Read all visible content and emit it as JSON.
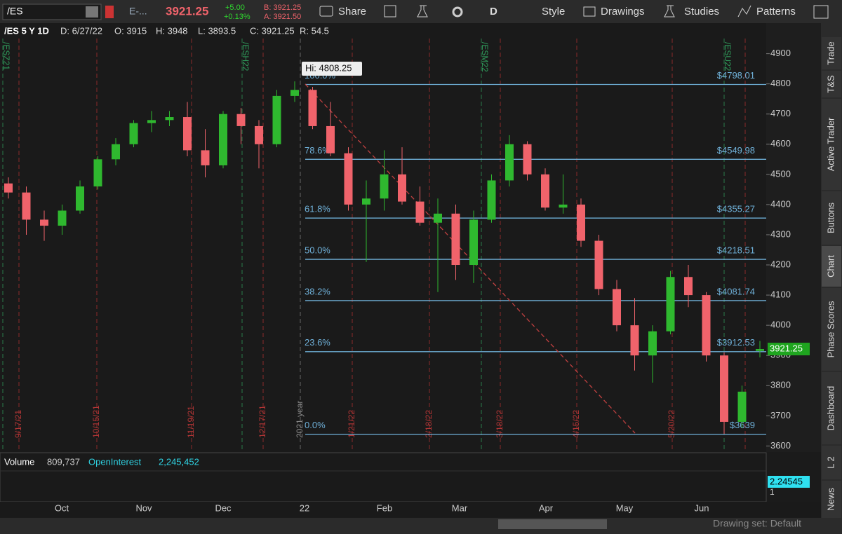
{
  "toolbar": {
    "symbol": "/ES",
    "description": "E-...",
    "last": "3921.25",
    "change": "+5.00",
    "change_pct": "+0.13%",
    "bid": "B: 3921.25",
    "ask": "A: 3921.50",
    "share": "Share",
    "aggregation": "D",
    "style": "Style",
    "drawings": "Drawings",
    "studies": "Studies",
    "patterns": "Patterns"
  },
  "info": {
    "symbol": "/ES 5 Y 1D",
    "date": "D: 6/27/22",
    "open": "O: 3915",
    "high": "H: 3948",
    "low": "L: 3893.5",
    "close": "C: 3921.25",
    "range": "R: 54.5"
  },
  "chart_data": {
    "type": "candlestick",
    "annotation": "Hi: 4808.25",
    "last_price_label": "3921.25",
    "last_price": 3921.25,
    "ylim": [
      3580,
      4985
    ],
    "yticks": [
      3600,
      3700,
      3800,
      3900,
      4000,
      4100,
      4200,
      4300,
      4400,
      4500,
      4600,
      4700,
      4800,
      4900
    ],
    "colors": {
      "up": "#2fb82f",
      "down": "#f0636b"
    },
    "candles": [
      [
        4470,
        4490,
        4420,
        4440
      ],
      [
        4440,
        4460,
        4300,
        4350
      ],
      [
        4350,
        4380,
        4280,
        4330
      ],
      [
        4330,
        4400,
        4300,
        4380
      ],
      [
        4380,
        4480,
        4370,
        4460
      ],
      [
        4460,
        4560,
        4450,
        4550
      ],
      [
        4550,
        4620,
        4530,
        4600
      ],
      [
        4600,
        4680,
        4590,
        4670
      ],
      [
        4670,
        4710,
        4640,
        4680
      ],
      [
        4680,
        4710,
        4660,
        4690
      ],
      [
        4690,
        4740,
        4560,
        4580
      ],
      [
        4580,
        4650,
        4490,
        4530
      ],
      [
        4530,
        4710,
        4520,
        4700
      ],
      [
        4700,
        4720,
        4600,
        4660
      ],
      [
        4660,
        4680,
        4520,
        4600
      ],
      [
        4600,
        4780,
        4590,
        4760
      ],
      [
        4760,
        4808.25,
        4740,
        4780
      ],
      [
        4780,
        4790,
        4650,
        4660
      ],
      [
        4660,
        4740,
        4560,
        4570
      ],
      [
        4570,
        4590,
        4380,
        4400
      ],
      [
        4400,
        4480,
        4210,
        4420
      ],
      [
        4420,
        4580,
        4380,
        4500
      ],
      [
        4500,
        4590,
        4400,
        4410
      ],
      [
        4410,
        4460,
        4330,
        4340
      ],
      [
        4340,
        4420,
        4110,
        4370
      ],
      [
        4370,
        4400,
        4150,
        4200
      ],
      [
        4200,
        4380,
        4140,
        4350
      ],
      [
        4350,
        4500,
        4340,
        4480
      ],
      [
        4480,
        4630,
        4460,
        4600
      ],
      [
        4600,
        4610,
        4480,
        4500
      ],
      [
        4500,
        4520,
        4380,
        4390
      ],
      [
        4390,
        4500,
        4370,
        4400
      ],
      [
        4400,
        4420,
        4260,
        4280
      ],
      [
        4280,
        4300,
        4100,
        4120
      ],
      [
        4120,
        4150,
        3980,
        4000
      ],
      [
        4000,
        4090,
        3850,
        3900
      ],
      [
        3900,
        4000,
        3810,
        3980
      ],
      [
        3980,
        4180,
        3970,
        4160
      ],
      [
        4160,
        4200,
        4060,
        4100
      ],
      [
        4100,
        4110,
        3880,
        3900
      ],
      [
        3900,
        3910,
        3640,
        3680
      ],
      [
        3680,
        3800,
        3660,
        3780
      ],
      [
        3915,
        3948,
        3893.5,
        3921.25
      ]
    ],
    "fib_levels": [
      {
        "pct": "100.0%",
        "price": 4798.01,
        "label": "$4798.01"
      },
      {
        "pct": "78.6%",
        "price": 4549.98,
        "label": "$4549.98"
      },
      {
        "pct": "61.8%",
        "price": 4355.27,
        "label": "$4355.27"
      },
      {
        "pct": "50.0%",
        "price": 4218.51,
        "label": "$4218.51"
      },
      {
        "pct": "38.2%",
        "price": 4081.74,
        "label": "$4081.74"
      },
      {
        "pct": "23.6%",
        "price": 3912.53,
        "label": "$3912.53"
      },
      {
        "pct": "0.0%",
        "price": 3639,
        "label": "$3639"
      }
    ],
    "expiry_dates": [
      "9/17/21",
      "10/15/21",
      "11/19/21",
      "12/17/21",
      "1/21/22",
      "2/18/22",
      "3/18/22",
      "4/15/22",
      "5/20/22"
    ],
    "contracts": [
      "/ESZ21",
      "/ESH22",
      "/ESM22",
      "/ESU22"
    ],
    "year_marker": "2021 year",
    "x_labels": [
      "Oct",
      "Nov",
      "Dec",
      "22",
      "Feb",
      "Mar",
      "Apr",
      "May",
      "Jun"
    ]
  },
  "volume_pane": {
    "volume_label": "Volume",
    "volume": "809,737",
    "oi_label": "OpenInterest",
    "oi": "2,245,452",
    "oi_axis": "2.24545",
    "axis_min": "1"
  },
  "sidebar": [
    "Trade",
    "T&S",
    "Active Trader",
    "Buttons",
    "Chart",
    "Phase Scores",
    "Dashboard",
    "L 2",
    "News"
  ],
  "footer": {
    "drawing_set": "Drawing set: Default"
  }
}
